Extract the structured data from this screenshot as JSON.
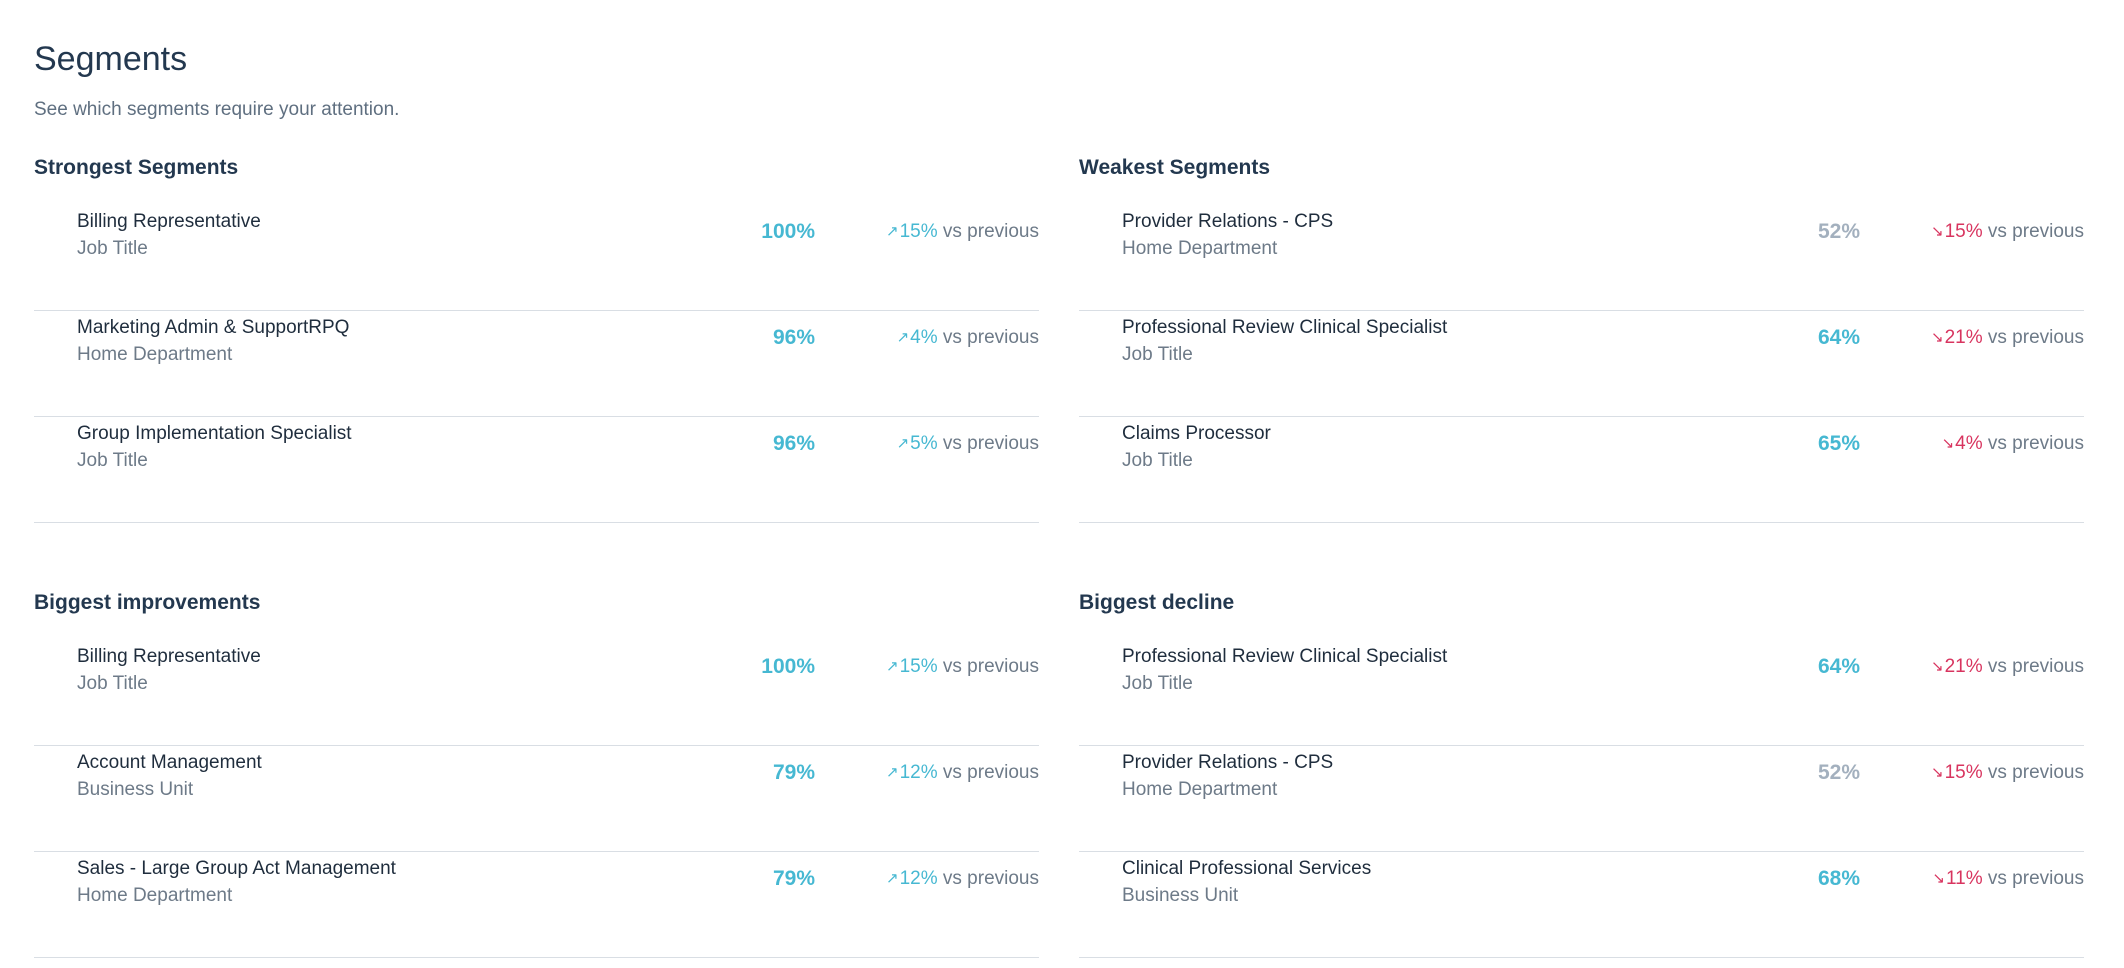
{
  "header": {
    "title": "Segments",
    "subtitle": "See which segments require your attention."
  },
  "vs_label": "vs previous",
  "colors": {
    "accent_teal": "#46b8d2",
    "score_grey": "#a3b0be",
    "decline_red": "#d8345f",
    "divider": "#d9dee4"
  },
  "sections": [
    {
      "title": "Strongest Segments",
      "rows": [
        {
          "name": "Billing Representative",
          "type": "Job Title",
          "score": "100%",
          "score_tone": "teal",
          "direction": "up",
          "arrow": "↗",
          "change": "15%"
        },
        {
          "name": "Marketing Admin & SupportRPQ",
          "type": "Home Department",
          "score": "96%",
          "score_tone": "teal",
          "direction": "up",
          "arrow": "↗",
          "change": "4%"
        },
        {
          "name": "Group Implementation Specialist",
          "type": "Job Title",
          "score": "96%",
          "score_tone": "teal",
          "direction": "up",
          "arrow": "↗",
          "change": "5%"
        }
      ]
    },
    {
      "title": "Weakest Segments",
      "rows": [
        {
          "name": "Provider Relations - CPS",
          "type": "Home Department",
          "score": "52%",
          "score_tone": "grey",
          "direction": "down",
          "arrow": "↘",
          "change": "15%"
        },
        {
          "name": "Professional Review Clinical Specialist",
          "type": "Job Title",
          "score": "64%",
          "score_tone": "teal",
          "direction": "down",
          "arrow": "↘",
          "change": "21%"
        },
        {
          "name": "Claims Processor",
          "type": "Job Title",
          "score": "65%",
          "score_tone": "teal",
          "direction": "down",
          "arrow": "↘",
          "change": "4%"
        }
      ]
    },
    {
      "title": "Biggest improvements",
      "rows": [
        {
          "name": "Billing Representative",
          "type": "Job Title",
          "score": "100%",
          "score_tone": "teal",
          "direction": "up",
          "arrow": "↗",
          "change": "15%"
        },
        {
          "name": "Account Management",
          "type": "Business Unit",
          "score": "79%",
          "score_tone": "teal",
          "direction": "up",
          "arrow": "↗",
          "change": "12%"
        },
        {
          "name": "Sales - Large Group Act Management",
          "type": "Home Department",
          "score": "79%",
          "score_tone": "teal",
          "direction": "up",
          "arrow": "↗",
          "change": "12%"
        }
      ]
    },
    {
      "title": "Biggest decline",
      "rows": [
        {
          "name": "Professional Review Clinical Specialist",
          "type": "Job Title",
          "score": "64%",
          "score_tone": "teal",
          "direction": "down",
          "arrow": "↘",
          "change": "21%"
        },
        {
          "name": "Provider Relations - CPS",
          "type": "Home Department",
          "score": "52%",
          "score_tone": "grey",
          "direction": "down",
          "arrow": "↘",
          "change": "15%"
        },
        {
          "name": "Clinical Professional Services",
          "type": "Business Unit",
          "score": "68%",
          "score_tone": "teal",
          "direction": "down",
          "arrow": "↘",
          "change": "11%"
        }
      ]
    }
  ]
}
